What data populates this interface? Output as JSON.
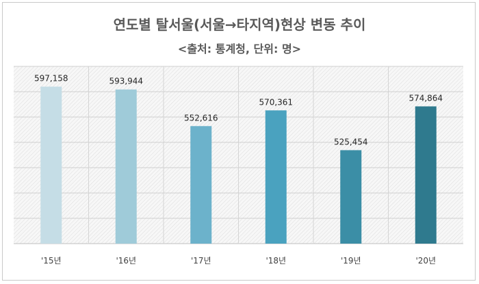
{
  "chart_data": {
    "type": "bar",
    "title": "연도별 탈서울(서울→타지역)현상 변동 추이",
    "subtitle": "<출처: 통계청, 단위: 명>",
    "categories": [
      "'15년",
      "'16년",
      "'17년",
      "'18년",
      "'19년",
      "'20년"
    ],
    "values": [
      597158,
      593944,
      552616,
      570361,
      525454,
      574864
    ],
    "value_labels": [
      "597,158",
      "593,944",
      "552,616",
      "570,361",
      "525,454",
      "574,864"
    ],
    "ylim": [
      420000,
      620000
    ],
    "grid": true,
    "legend": "none",
    "colors": [
      "#c5dde6",
      "#9fcbd9",
      "#6cb2cb",
      "#4aa2bf",
      "#3b8ea6",
      "#2f7a8e"
    ]
  }
}
